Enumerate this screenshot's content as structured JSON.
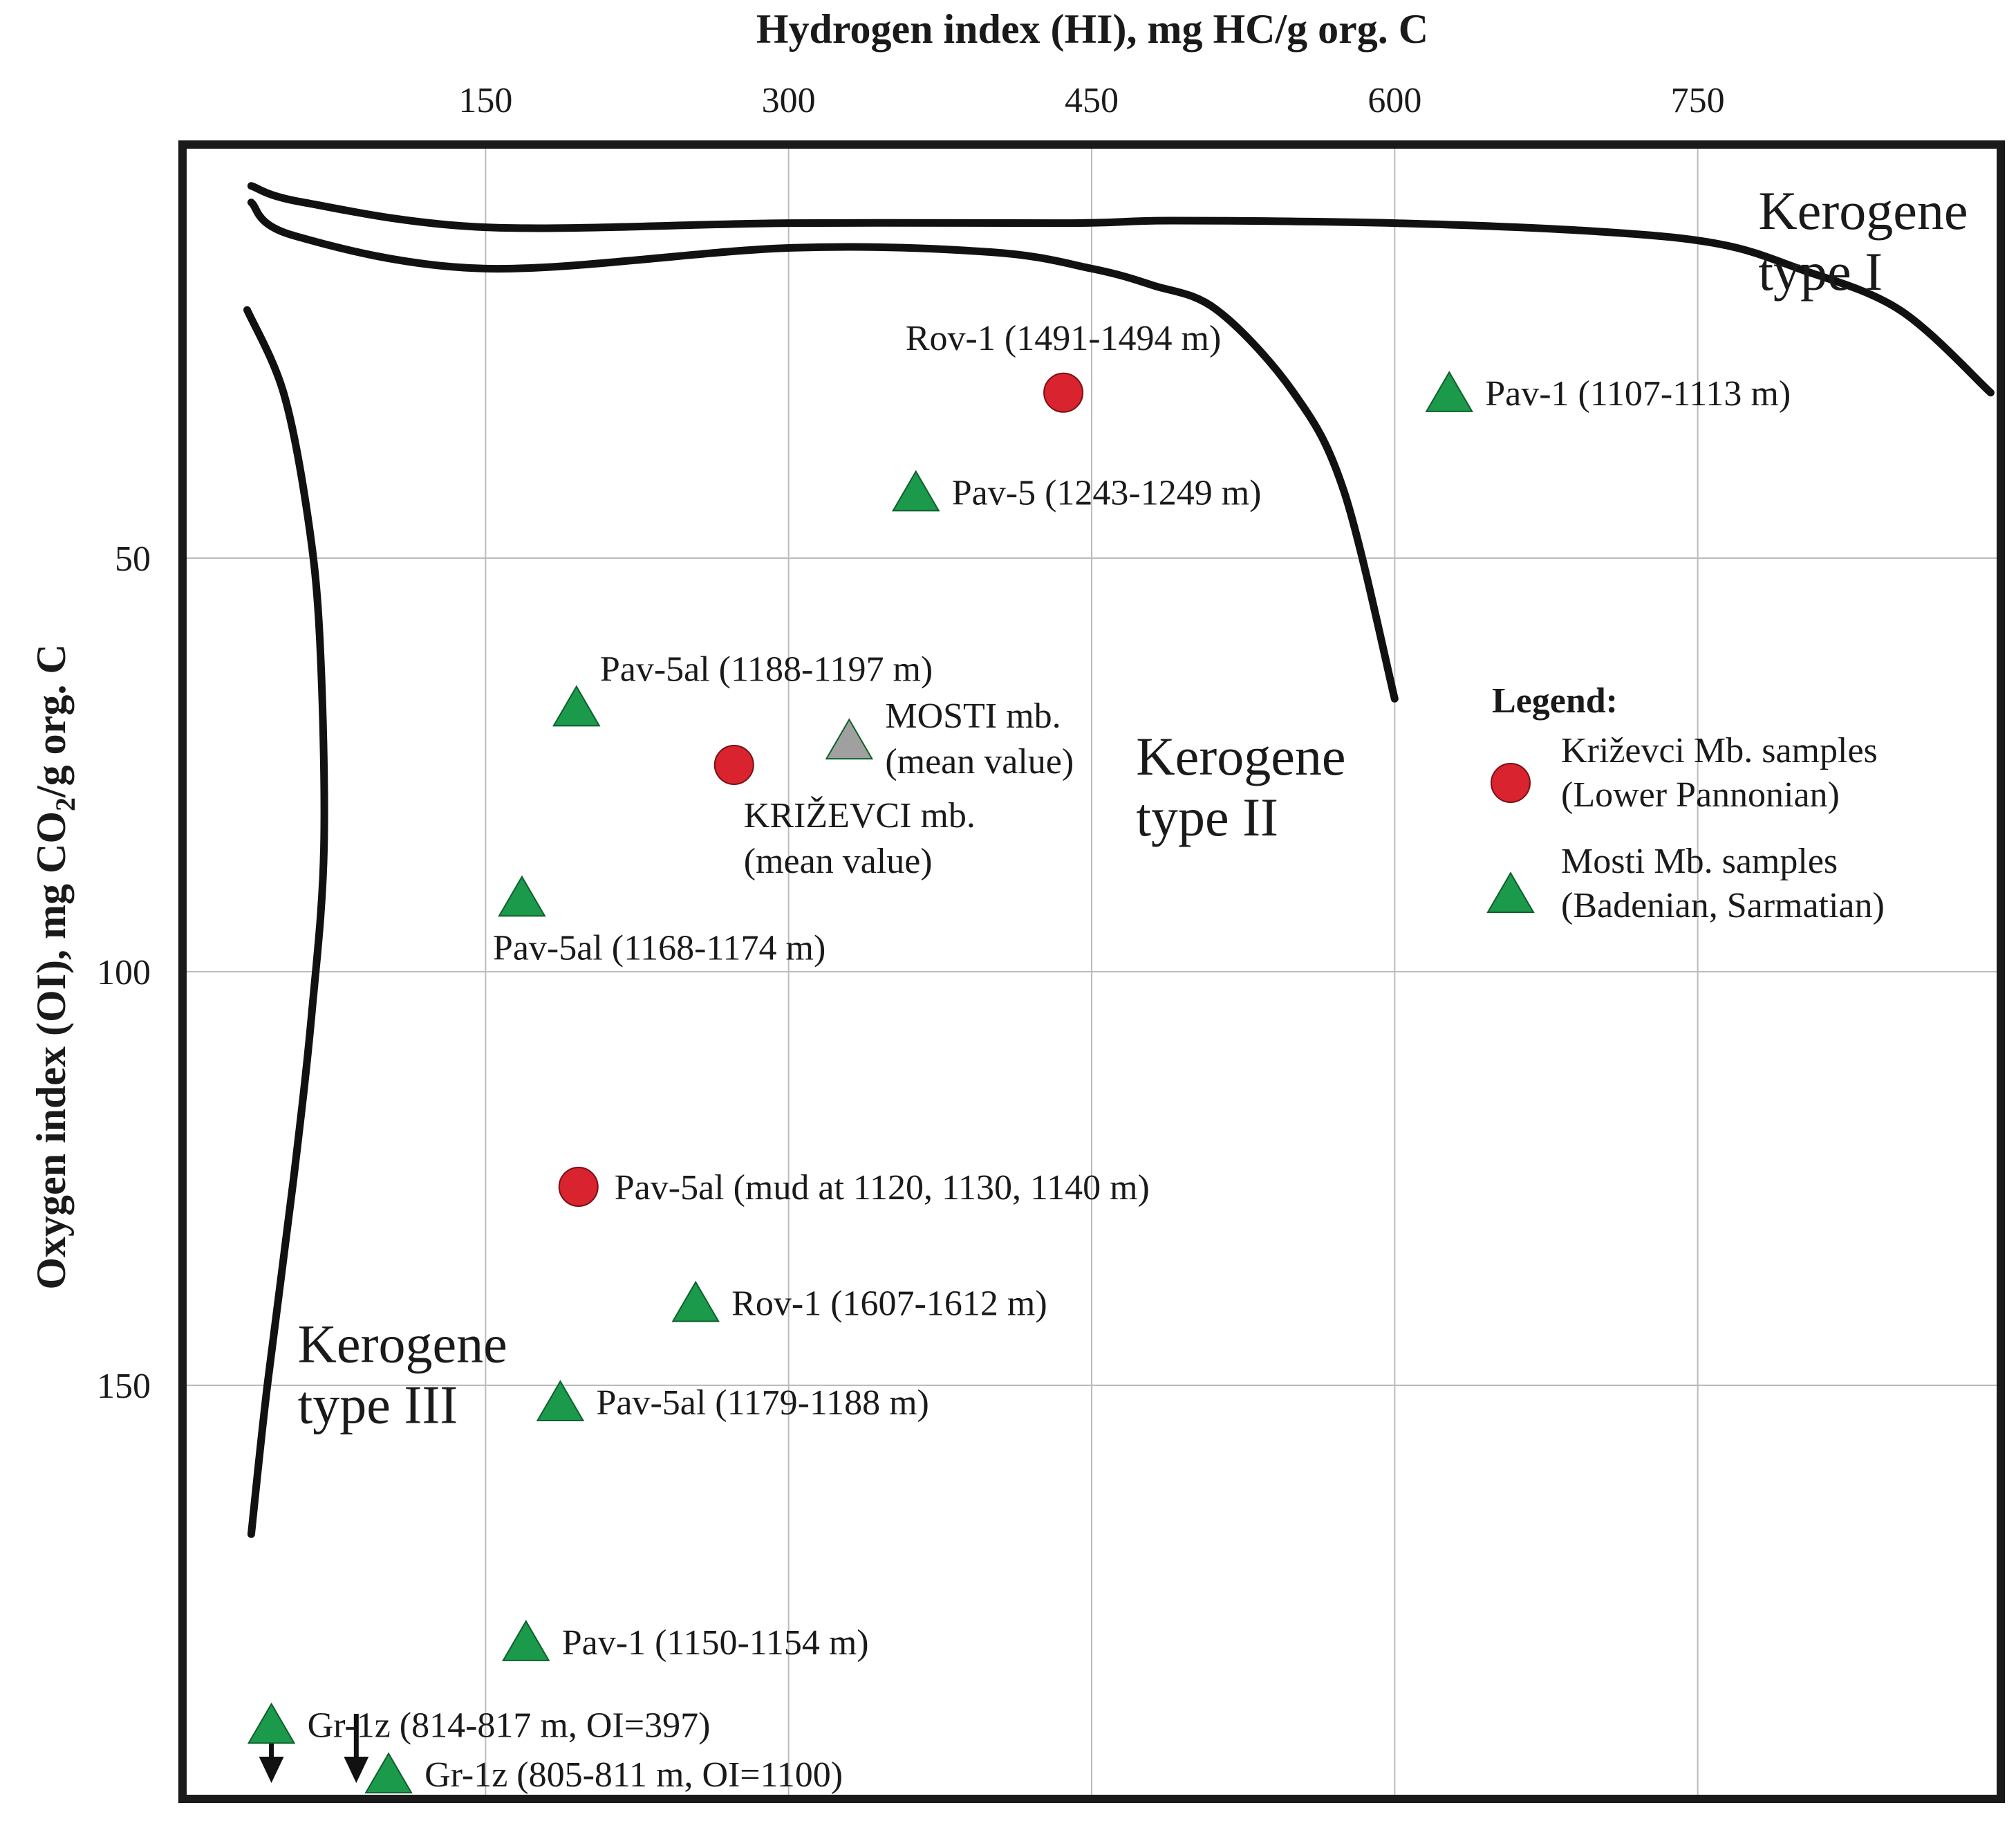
{
  "chart_data": {
    "type": "scatter",
    "title": "",
    "xlabel": "Hydrogen index (HI), mg HC/g org. C",
    "ylabel_parts": {
      "before": "Oxygen index (OI), mg CO",
      "sub": "2",
      "after": "/g org. C"
    },
    "x_ticks": [
      "150",
      "300",
      "450",
      "600",
      "750"
    ],
    "x_tick_values": [
      150,
      300,
      450,
      600,
      750
    ],
    "y_ticks": [
      "50",
      "100",
      "150"
    ],
    "y_tick_values": [
      50,
      100,
      150
    ],
    "xlim": [
      0,
      900
    ],
    "ylim": [
      0,
      200
    ],
    "grid": true,
    "series": [
      {
        "name": "Križevci Mb. samples (Lower Pannonian)",
        "marker": "circle",
        "color": "#d9232e",
        "points": [
          {
            "x": 436,
            "y": 30,
            "label": "Rov-1 (1491-1494 m)",
            "anchor": "above"
          },
          {
            "x": 273,
            "y": 75,
            "label_lines": [
              "KRIŽEVCI mb.",
              "(mean value)"
            ],
            "anchor": "below-right"
          },
          {
            "x": 196,
            "y": 126,
            "label": "Pav-5al (mud at 1120, 1130, 1140 m)",
            "anchor": "right"
          }
        ]
      },
      {
        "name": "Mosti Mb. samples (Badenian, Sarmatian)",
        "marker": "triangle",
        "color": "#1a9a4a",
        "points": [
          {
            "x": 627,
            "y": 30,
            "label": "Pav-1 (1107-1113 m)",
            "anchor": "right"
          },
          {
            "x": 363,
            "y": 42,
            "label": "Pav-5 (1243-1249 m)",
            "anchor": "right"
          },
          {
            "x": 195,
            "y": 68,
            "label": "Pav-5al (1188-1197 m)",
            "anchor": "above-right"
          },
          {
            "x": 168,
            "y": 91,
            "label": "Pav-5al (1168-1174 m)",
            "anchor": "below"
          },
          {
            "x": 254,
            "y": 140,
            "label": "Rov-1 (1607-1612 m)",
            "anchor": "right"
          },
          {
            "x": 187,
            "y": 152,
            "label": "Pav-5al (1179-1188 m)",
            "anchor": "right"
          },
          {
            "x": 170,
            "y": 181,
            "label": "Pav-1 (1150-1154 m)",
            "anchor": "right"
          },
          {
            "x": 44,
            "y": 191,
            "label": "Gr-1z (814-817 m, OI=397)",
            "anchor": "right",
            "off_scale": true
          },
          {
            "x": 102,
            "y": 197,
            "label": "Gr-1z (805-811 m, OI=1100)",
            "anchor": "right",
            "off_scale": true
          }
        ]
      },
      {
        "name": "MOSTI mb. mean",
        "marker": "triangle",
        "color": "#a0a0a0",
        "points": [
          {
            "x": 330,
            "y": 72,
            "label_lines": [
              "MOSTI mb.",
              "(mean value)"
            ],
            "anchor": "right"
          }
        ]
      }
    ],
    "boundaries": [
      {
        "name": "type-I-curve",
        "points": [
          [
            34,
            5
          ],
          [
            60,
            7
          ],
          [
            150,
            10
          ],
          [
            300,
            9.5
          ],
          [
            440,
            9.5
          ],
          [
            490,
            9.2
          ],
          [
            600,
            9.5
          ],
          [
            700,
            10.5
          ],
          [
            760,
            12
          ],
          [
            800,
            15
          ],
          [
            850,
            20
          ],
          [
            895,
            30
          ]
        ]
      },
      {
        "name": "type-II-curve",
        "points": [
          [
            34,
            7
          ],
          [
            55,
            11
          ],
          [
            150,
            15
          ],
          [
            300,
            12.5
          ],
          [
            400,
            13
          ],
          [
            450,
            15
          ],
          [
            480,
            17
          ],
          [
            512,
            20
          ],
          [
            550,
            30
          ],
          [
            575,
            42
          ],
          [
            600,
            67
          ]
        ]
      },
      {
        "name": "type-III-curve",
        "points": [
          [
            32,
            20
          ],
          [
            50,
            30
          ],
          [
            62,
            45
          ],
          [
            68,
            60
          ],
          [
            70,
            85
          ],
          [
            64,
            105
          ],
          [
            55,
            125
          ],
          [
            42,
            150
          ],
          [
            34,
            168
          ]
        ]
      }
    ],
    "off_scale_arrows": [
      {
        "x": 44
      },
      {
        "x": 86
      }
    ],
    "region_labels": [
      {
        "lines": [
          "Kerogene",
          "type I"
        ],
        "x": 780,
        "y": 6
      },
      {
        "lines": [
          "Kerogene",
          "type II"
        ],
        "x": 472,
        "y": 72
      },
      {
        "lines": [
          "Kerogene",
          "type III"
        ],
        "x": 57,
        "y": 143
      }
    ],
    "legend": {
      "title": "Legend:",
      "position": "right",
      "entries": [
        {
          "marker": "circle",
          "color": "#d9232e",
          "lines": [
            "Križevci Mb. samples",
            "(Lower Pannonian)"
          ]
        },
        {
          "marker": "triangle",
          "color": "#1a9a4a",
          "lines": [
            "Mosti Mb. samples",
            "(Badenian, Sarmatian)"
          ]
        }
      ]
    }
  }
}
